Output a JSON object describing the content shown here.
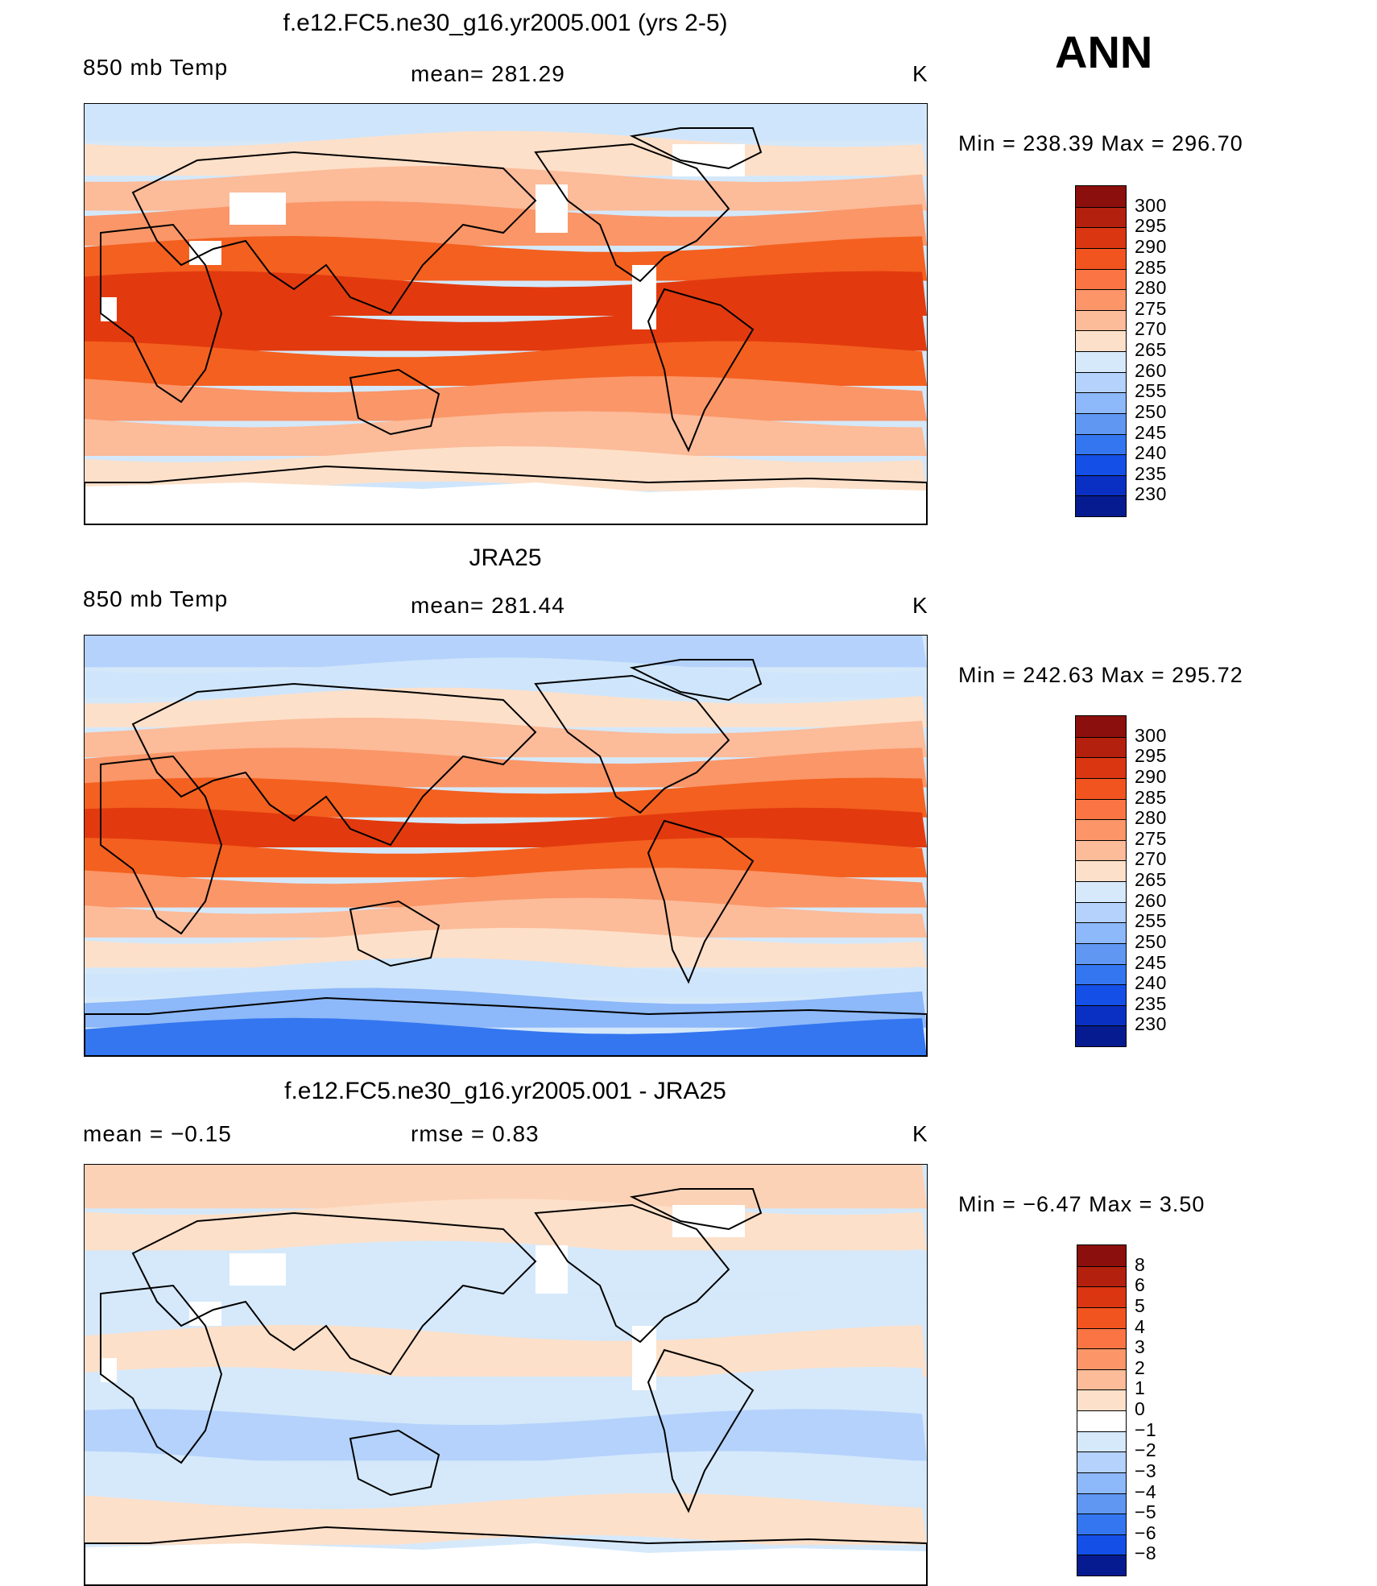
{
  "header": {
    "season": "ANN"
  },
  "panels": [
    {
      "id": "model",
      "title": "f.e12.FC5.ne30_g16.yr2005.001 (yrs 2-5)",
      "left_text": "850 mb Temp",
      "center_text": "mean= 281.29",
      "units": "K",
      "minmax": "Min = 238.39 Max = 296.70",
      "colorbar": {
        "labels": [
          "300",
          "295",
          "290",
          "285",
          "280",
          "275",
          "270",
          "265",
          "260",
          "255",
          "250",
          "245",
          "240",
          "235",
          "230"
        ],
        "colors": [
          "#8b0f0c",
          "#b3200e",
          "#d93611",
          "#f2541f",
          "#fa7543",
          "#fc9669",
          "#fcbb99",
          "#fde0c9",
          "#d6e9fb",
          "#b4d2fb",
          "#8db8f9",
          "#5f97f3",
          "#3476f0",
          "#1450e8",
          "#0a30c3",
          "#061b8f"
        ]
      },
      "bands": [
        "#cfe5fb",
        "#fde0c9",
        "#fcbb99",
        "#fa9668",
        "#f4601f",
        "#e23a0e",
        "#e23a0e",
        "#f4601f",
        "#fa9668",
        "#fcbb99",
        "#fde0c9",
        "#cfe5fb"
      ]
    },
    {
      "id": "obs",
      "title": "JRA25",
      "left_text": "850 mb Temp",
      "center_text": "mean= 281.44",
      "units": "K",
      "minmax": "Min = 242.63 Max = 295.72",
      "colorbar": {
        "labels": [
          "300",
          "295",
          "290",
          "285",
          "280",
          "275",
          "270",
          "265",
          "260",
          "255",
          "250",
          "245",
          "240",
          "235",
          "230"
        ],
        "colors": [
          "#8b0f0c",
          "#b3200e",
          "#d93611",
          "#f2541f",
          "#fa7543",
          "#fc9669",
          "#fcbb99",
          "#fde0c9",
          "#d6e9fb",
          "#b4d2fb",
          "#8db8f9",
          "#5f97f3",
          "#3476f0",
          "#1450e8",
          "#0a30c3",
          "#061b8f"
        ]
      },
      "bands": [
        "#b4d2fb",
        "#cfe5fb",
        "#fde0c9",
        "#fcbb99",
        "#fa9668",
        "#f4601f",
        "#e23a0e",
        "#f4601f",
        "#fa9668",
        "#fcbb99",
        "#fde0c9",
        "#cfe5fb",
        "#8db8f9",
        "#3476f0"
      ]
    },
    {
      "id": "diff",
      "title": "f.e12.FC5.ne30_g16.yr2005.001 - JRA25",
      "left_text": "mean = −0.15",
      "center_text": "rmse = 0.83",
      "units": "K",
      "minmax": "Min = −6.47 Max = 3.50",
      "colorbar": {
        "labels": [
          "8",
          "6",
          "5",
          "4",
          "3",
          "2",
          "1",
          "0",
          "−1",
          "−2",
          "−3",
          "−4",
          "−5",
          "−6",
          "−8"
        ],
        "colors": [
          "#8b0f0c",
          "#b3200e",
          "#d93611",
          "#f2541f",
          "#fa7543",
          "#fc9669",
          "#fcbb99",
          "#fde0c9",
          "#ffffff",
          "#d6e9fb",
          "#b4d2fb",
          "#8db8f9",
          "#5f97f3",
          "#3476f0",
          "#1450e8",
          "#061b8f"
        ]
      },
      "bands": [
        "#fcd2b6",
        "#fde0c9",
        "#d6e9fb",
        "#d6e9fb",
        "#fde0c9",
        "#d6e9fb",
        "#b4d2fb",
        "#d6e9fb",
        "#fde0c9",
        "#d6e9fb"
      ]
    }
  ]
}
